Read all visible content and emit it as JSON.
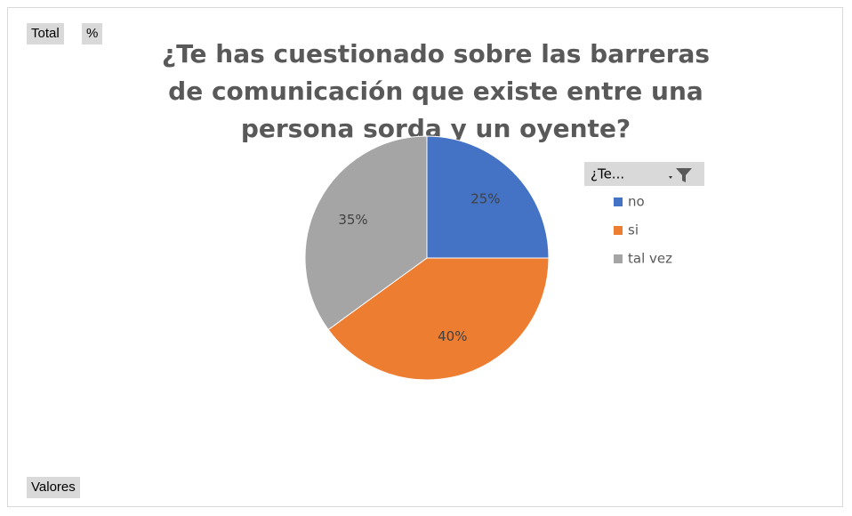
{
  "chart_data": {
    "type": "pie",
    "title": "¿Te has cuestionado sobre las barreras de comunicación que existe entre una persona sorda y un oyente?",
    "field_buttons": [
      "Total",
      "%"
    ],
    "axis_button": "Valores",
    "legend_title": "¿Te...",
    "categories": [
      "no",
      "si",
      "tal vez"
    ],
    "values": [
      25,
      40,
      35
    ],
    "value_labels": [
      "25%",
      "40%",
      "35%"
    ],
    "colors": [
      "#4472c4",
      "#ed7d31",
      "#a5a5a5"
    ],
    "legend": "right"
  }
}
